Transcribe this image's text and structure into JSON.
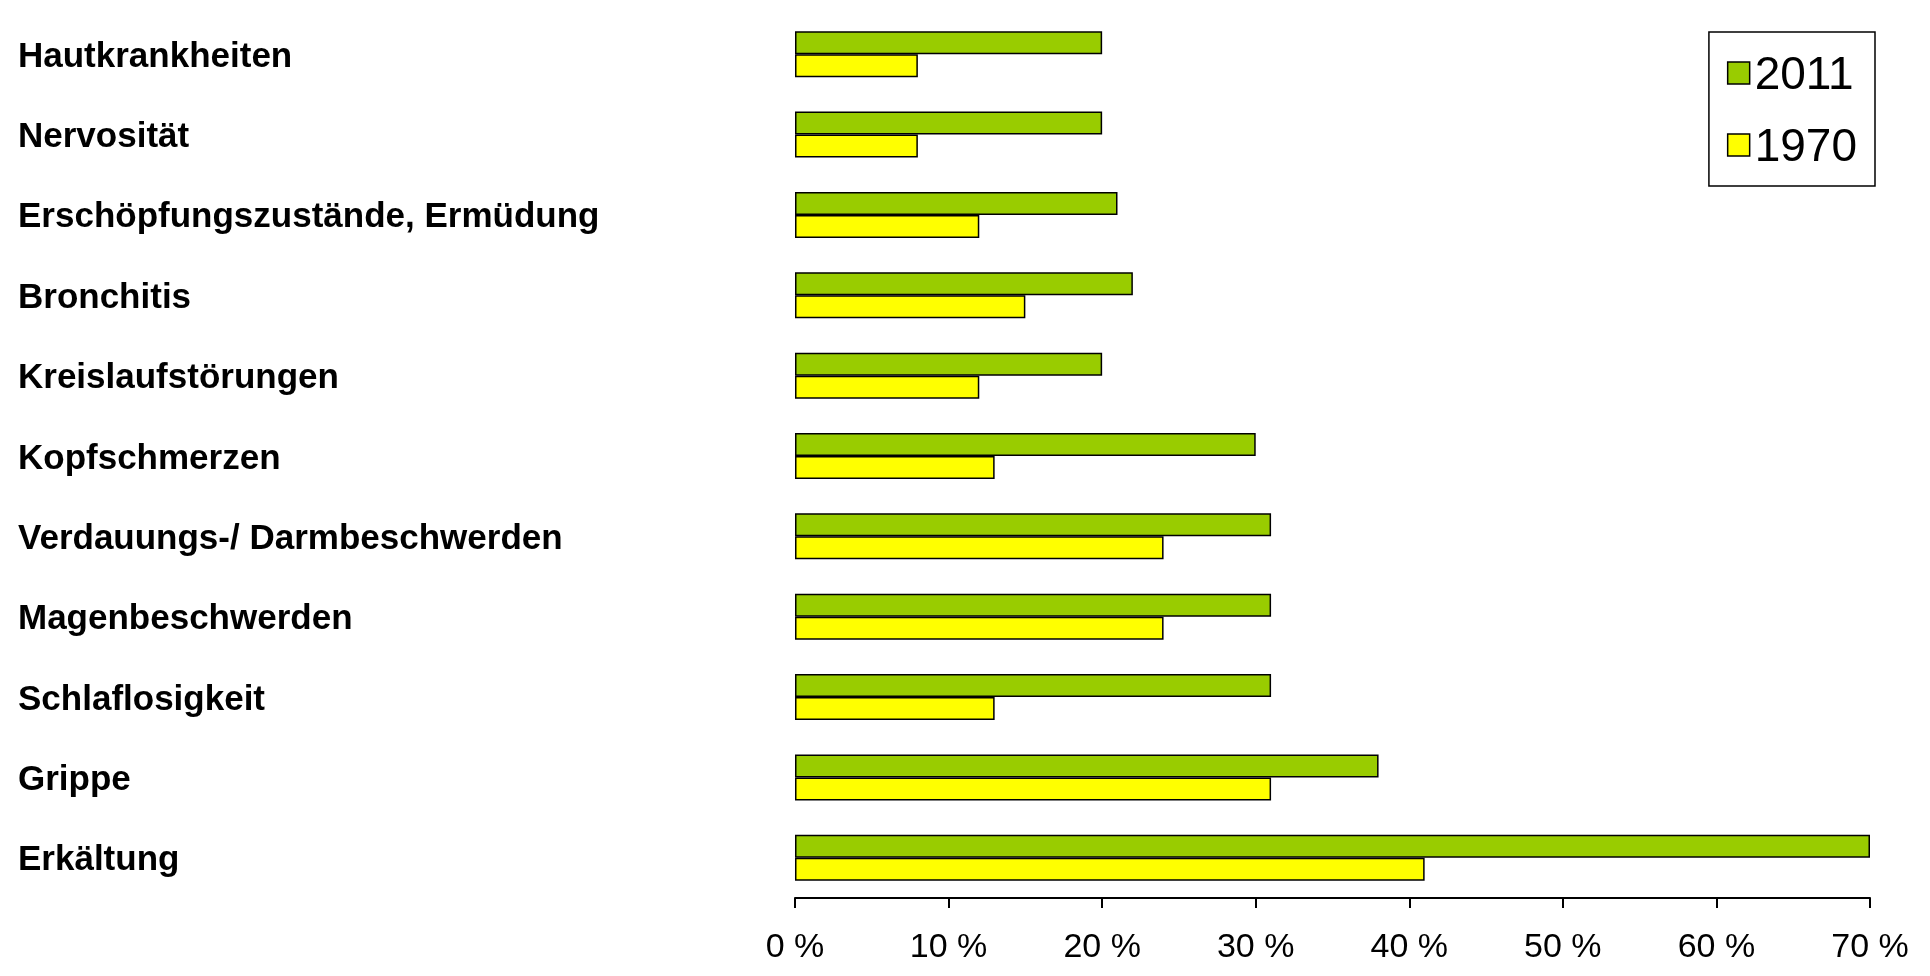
{
  "chart_data": {
    "type": "bar",
    "orientation": "horizontal",
    "categories": [
      "Hautkrankheiten",
      "Nervosität",
      "Erschöpfungszustände, Ermüdung",
      "Bronchitis",
      "Kreislaufstörungen",
      "Kopfschmerzen",
      "Verdauungs-/ Darmbeschwerden",
      "Magenbeschwerden",
      "Schlaflosigkeit",
      "Grippe",
      "Erkältung"
    ],
    "series": [
      {
        "name": "2011",
        "color": "#99cc00",
        "values": [
          20,
          20,
          21,
          22,
          20,
          30,
          31,
          31,
          31,
          38,
          70
        ]
      },
      {
        "name": "1970",
        "color": "#ffff00",
        "values": [
          8,
          8,
          12,
          15,
          12,
          13,
          24,
          24,
          13,
          31,
          41
        ]
      }
    ],
    "xlim": [
      0,
      70
    ],
    "xticks": [
      {
        "value": 0,
        "label": "0 %"
      },
      {
        "value": 10,
        "label": "10 %"
      },
      {
        "value": 20,
        "label": "20 %"
      },
      {
        "value": 30,
        "label": "30 %"
      },
      {
        "value": 40,
        "label": "40 %"
      },
      {
        "value": 50,
        "label": "50 %"
      },
      {
        "value": 60,
        "label": "60 %"
      },
      {
        "value": 70,
        "label": "70 %"
      }
    ],
    "grid": false,
    "legend": "top right"
  }
}
